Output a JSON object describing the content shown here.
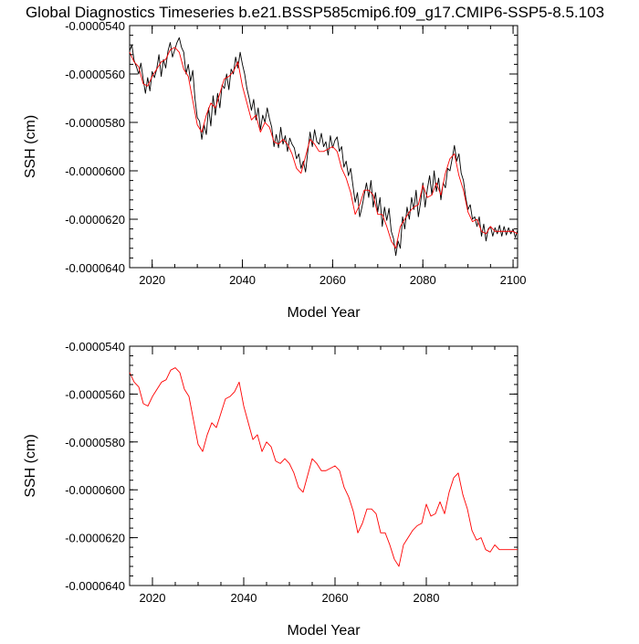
{
  "page_title": "Global Diagnostics Timeseries b.e21.BSSP585cmip6.f09_g17.CMIP6-SSP5-8.5.103",
  "colors": {
    "monthly_line": "#000000",
    "annual_line": "#ff0000",
    "axes": "#000000",
    "background": "#ffffff"
  },
  "chart_data": [
    {
      "type": "line",
      "title": "Global Diagnostics Timeseries b.e21.BSSP585cmip6.f09_g17.CMIP6-SSP5-8.5.103",
      "xlabel": "Model Year",
      "ylabel": "SSH (cm)",
      "xlim": [
        2015,
        2101
      ],
      "ylim": [
        -6.4e-05,
        -5.4e-05
      ],
      "x_ticks": [
        2020,
        2040,
        2060,
        2080,
        2100
      ],
      "x_tick_labels": [
        "2020",
        "2040",
        "2060",
        "2080",
        "2100"
      ],
      "y_ticks": [
        -6.4e-05,
        -6.2e-05,
        -6e-05,
        -5.8e-05,
        -5.6e-05,
        -5.4e-05
      ],
      "y_tick_labels": [
        "-0.0000640",
        "-0.0000620",
        "-0.0000600",
        "-0.0000580",
        "-0.0000560",
        "-0.0000540"
      ],
      "grid": false,
      "series": [
        {
          "color": "#000000",
          "x": [
            2015.0,
            2015.5,
            2016.0,
            2016.5,
            2017.0,
            2017.5,
            2018.0,
            2018.5,
            2019.0,
            2019.5,
            2020.0,
            2020.5,
            2021.0,
            2021.5,
            2022.0,
            2022.5,
            2023.0,
            2023.5,
            2024.0,
            2024.5,
            2025.0,
            2025.5,
            2026.0,
            2026.5,
            2027.0,
            2027.5,
            2028.0,
            2028.5,
            2029.0,
            2029.5,
            2030.0,
            2030.5,
            2031.0,
            2031.5,
            2032.0,
            2032.5,
            2033.0,
            2033.5,
            2034.0,
            2034.5,
            2035.0,
            2035.5,
            2036.0,
            2036.5,
            2037.0,
            2037.5,
            2038.0,
            2038.5,
            2039.0,
            2039.5,
            2040.0,
            2040.5,
            2041.0,
            2041.5,
            2042.0,
            2042.5,
            2043.0,
            2043.5,
            2044.0,
            2044.5,
            2045.0,
            2045.5,
            2046.0,
            2046.5,
            2047.0,
            2047.5,
            2048.0,
            2048.5,
            2049.0,
            2049.5,
            2050.0,
            2050.5,
            2051.0,
            2051.5,
            2052.0,
            2052.5,
            2053.0,
            2053.5,
            2054.0,
            2054.5,
            2055.0,
            2055.5,
            2056.0,
            2056.5,
            2057.0,
            2057.5,
            2058.0,
            2058.5,
            2059.0,
            2059.5,
            2060.0,
            2060.5,
            2061.0,
            2061.5,
            2062.0,
            2062.5,
            2063.0,
            2063.5,
            2064.0,
            2064.5,
            2065.0,
            2065.5,
            2066.0,
            2066.5,
            2067.0,
            2067.5,
            2068.0,
            2068.5,
            2069.0,
            2069.5,
            2070.0,
            2070.5,
            2071.0,
            2071.5,
            2072.0,
            2072.5,
            2073.0,
            2073.5,
            2074.0,
            2074.5,
            2075.0,
            2075.5,
            2076.0,
            2076.5,
            2077.0,
            2077.5,
            2078.0,
            2078.5,
            2079.0,
            2079.5,
            2080.0,
            2080.5,
            2081.0,
            2081.5,
            2082.0,
            2082.5,
            2083.0,
            2083.5,
            2084.0,
            2084.5,
            2085.0,
            2085.5,
            2086.0,
            2086.5,
            2087.0,
            2087.5,
            2088.0,
            2088.5,
            2089.0,
            2089.5,
            2090.0,
            2090.5,
            2091.0,
            2091.5,
            2092.0,
            2092.5,
            2093.0,
            2093.5,
            2094.0,
            2094.5,
            2095.0,
            2095.5,
            2096.0,
            2096.5,
            2097.0,
            2097.5,
            2098.0,
            2098.5,
            2099.0,
            2099.5,
            2100.0,
            2100.5,
            2101.0
          ],
          "values": [
            -5.505e-05,
            -5.48e-05,
            -5.545e-05,
            -5.57e-05,
            -5.6e-05,
            -5.555e-05,
            -5.62e-05,
            -5.68e-05,
            -5.615e-05,
            -5.67e-05,
            -5.59e-05,
            -5.615e-05,
            -5.58e-05,
            -5.52e-05,
            -5.61e-05,
            -5.54e-05,
            -5.575e-05,
            -5.505e-05,
            -5.47e-05,
            -5.53e-05,
            -5.5e-05,
            -5.47e-05,
            -5.45e-05,
            -5.49e-05,
            -5.51e-05,
            -5.6e-05,
            -5.56e-05,
            -5.63e-05,
            -5.585e-05,
            -5.705e-05,
            -5.78e-05,
            -5.795e-05,
            -5.87e-05,
            -5.81e-05,
            -5.85e-05,
            -5.74e-05,
            -5.815e-05,
            -5.69e-05,
            -5.77e-05,
            -5.68e-05,
            -5.74e-05,
            -5.645e-05,
            -5.66e-05,
            -5.6e-05,
            -5.665e-05,
            -5.58e-05,
            -5.6e-05,
            -5.53e-05,
            -5.575e-05,
            -5.51e-05,
            -5.56e-05,
            -5.6e-05,
            -5.66e-05,
            -5.7e-05,
            -5.75e-05,
            -5.705e-05,
            -5.79e-05,
            -5.74e-05,
            -5.83e-05,
            -5.77e-05,
            -5.8e-05,
            -5.74e-05,
            -5.785e-05,
            -5.82e-05,
            -5.9e-05,
            -5.85e-05,
            -5.905e-05,
            -5.82e-05,
            -5.89e-05,
            -5.855e-05,
            -5.92e-05,
            -5.865e-05,
            -5.89e-05,
            -5.905e-05,
            -5.95e-05,
            -5.93e-05,
            -5.99e-05,
            -5.96e-05,
            -6.005e-05,
            -5.92e-05,
            -5.84e-05,
            -5.9e-05,
            -5.83e-05,
            -5.88e-05,
            -5.89e-05,
            -5.845e-05,
            -5.9e-05,
            -5.88e-05,
            -5.935e-05,
            -5.855e-05,
            -5.905e-05,
            -5.875e-05,
            -5.86e-05,
            -5.92e-05,
            -5.9e-05,
            -5.985e-05,
            -5.96e-05,
            -6.02e-05,
            -5.99e-05,
            -6.06e-05,
            -6.13e-05,
            -6.09e-05,
            -6.19e-05,
            -6.15e-05,
            -6.1e-05,
            -6.05e-05,
            -6.11e-05,
            -6.04e-05,
            -6.15e-05,
            -6.09e-05,
            -6.17e-05,
            -6.11e-05,
            -6.23e-05,
            -6.15e-05,
            -6.205e-05,
            -6.155e-05,
            -6.25e-05,
            -6.28e-05,
            -6.35e-05,
            -6.29e-05,
            -6.32e-05,
            -6.19e-05,
            -6.24e-05,
            -6.15e-05,
            -6.2e-05,
            -6.11e-05,
            -6.16e-05,
            -6.08e-05,
            -6.19e-05,
            -6.13e-05,
            -6.05e-05,
            -6.15e-05,
            -6.075e-05,
            -6.02e-05,
            -6.1e-05,
            -6e-05,
            -6.085e-05,
            -6.03e-05,
            -6.12e-05,
            -6.05e-05,
            -6.07e-05,
            -5.99e-05,
            -6e-05,
            -5.95e-05,
            -5.895e-05,
            -5.96e-05,
            -5.93e-05,
            -6.01e-05,
            -6.04e-05,
            -6.11e-05,
            -6.16e-05,
            -6.14e-05,
            -6.2e-05,
            -6.19e-05,
            -6.23e-05,
            -6.19e-05,
            -6.27e-05,
            -6.22e-05,
            -6.29e-05,
            -6.24e-05,
            -6.23e-05,
            -6.27e-05,
            -6.235e-05,
            -6.26e-05,
            -6.225e-05,
            -6.27e-05,
            -6.23e-05,
            -6.265e-05,
            -6.235e-05,
            -6.26e-05,
            -6.24e-05,
            -6.275e-05,
            -6.245e-05
          ]
        },
        {
          "color": "#ff0000",
          "x": [
            2015,
            2016,
            2017,
            2018,
            2019,
            2020,
            2021,
            2022,
            2023,
            2024,
            2025,
            2026,
            2027,
            2028,
            2029,
            2030,
            2031,
            2032,
            2033,
            2034,
            2035,
            2036,
            2037,
            2038,
            2039,
            2040,
            2041,
            2042,
            2043,
            2044,
            2045,
            2046,
            2047,
            2048,
            2049,
            2050,
            2051,
            2052,
            2053,
            2054,
            2055,
            2056,
            2057,
            2058,
            2059,
            2060,
            2061,
            2062,
            2063,
            2064,
            2065,
            2066,
            2067,
            2068,
            2069,
            2070,
            2071,
            2072,
            2073,
            2074,
            2075,
            2076,
            2077,
            2078,
            2079,
            2080,
            2081,
            2082,
            2083,
            2084,
            2085,
            2086,
            2087,
            2088,
            2089,
            2090,
            2091,
            2092,
            2093,
            2094,
            2095,
            2096,
            2097,
            2098,
            2099,
            2100,
            2101
          ],
          "values": [
            -5.51e-05,
            -5.55e-05,
            -5.57e-05,
            -5.64e-05,
            -5.65e-05,
            -5.61e-05,
            -5.58e-05,
            -5.55e-05,
            -5.54e-05,
            -5.5e-05,
            -5.49e-05,
            -5.51e-05,
            -5.58e-05,
            -5.61e-05,
            -5.71e-05,
            -5.81e-05,
            -5.84e-05,
            -5.77e-05,
            -5.72e-05,
            -5.74e-05,
            -5.68e-05,
            -5.62e-05,
            -5.61e-05,
            -5.59e-05,
            -5.55e-05,
            -5.65e-05,
            -5.72e-05,
            -5.79e-05,
            -5.77e-05,
            -5.84e-05,
            -5.8e-05,
            -5.82e-05,
            -5.88e-05,
            -5.89e-05,
            -5.87e-05,
            -5.89e-05,
            -5.93e-05,
            -5.99e-05,
            -6.01e-05,
            -5.94e-05,
            -5.87e-05,
            -5.89e-05,
            -5.92e-05,
            -5.92e-05,
            -5.91e-05,
            -5.9e-05,
            -5.92e-05,
            -5.99e-05,
            -6.03e-05,
            -6.09e-05,
            -6.18e-05,
            -6.14e-05,
            -6.08e-05,
            -6.08e-05,
            -6.1e-05,
            -6.18e-05,
            -6.18e-05,
            -6.23e-05,
            -6.29e-05,
            -6.32e-05,
            -6.23e-05,
            -6.2e-05,
            -6.17e-05,
            -6.15e-05,
            -6.14e-05,
            -6.06e-05,
            -6.11e-05,
            -6.1e-05,
            -6.05e-05,
            -6.1e-05,
            -6.01e-05,
            -5.95e-05,
            -5.93e-05,
            -6.02e-05,
            -6.08e-05,
            -6.17e-05,
            -6.21e-05,
            -6.2e-05,
            -6.25e-05,
            -6.26e-05,
            -6.23e-05,
            -6.25e-05,
            -6.25e-05,
            -6.25e-05,
            -6.25e-05,
            -6.25e-05,
            -6.26e-05
          ]
        }
      ]
    },
    {
      "type": "line",
      "title": "",
      "xlabel": "Model Year",
      "ylabel": "SSH (cm)",
      "xlim": [
        2015,
        2100
      ],
      "ylim": [
        -6.4e-05,
        -5.4e-05
      ],
      "x_ticks": [
        2020,
        2040,
        2060,
        2080
      ],
      "x_tick_labels": [
        "2020",
        "2040",
        "2060",
        "2080"
      ],
      "y_ticks": [
        -6.4e-05,
        -6.2e-05,
        -6e-05,
        -5.8e-05,
        -5.6e-05,
        -5.4e-05
      ],
      "y_tick_labels": [
        "-0.0000640",
        "-0.0000620",
        "-0.0000600",
        "-0.0000580",
        "-0.0000560",
        "-0.0000540"
      ],
      "grid": false,
      "series": [
        {
          "color": "#ff0000",
          "x": [
            2015,
            2016,
            2017,
            2018,
            2019,
            2020,
            2021,
            2022,
            2023,
            2024,
            2025,
            2026,
            2027,
            2028,
            2029,
            2030,
            2031,
            2032,
            2033,
            2034,
            2035,
            2036,
            2037,
            2038,
            2039,
            2040,
            2041,
            2042,
            2043,
            2044,
            2045,
            2046,
            2047,
            2048,
            2049,
            2050,
            2051,
            2052,
            2053,
            2054,
            2055,
            2056,
            2057,
            2058,
            2059,
            2060,
            2061,
            2062,
            2063,
            2064,
            2065,
            2066,
            2067,
            2068,
            2069,
            2070,
            2071,
            2072,
            2073,
            2074,
            2075,
            2076,
            2077,
            2078,
            2079,
            2080,
            2081,
            2082,
            2083,
            2084,
            2085,
            2086,
            2087,
            2088,
            2089,
            2090,
            2091,
            2092,
            2093,
            2094,
            2095,
            2096,
            2097,
            2098,
            2099,
            2100
          ],
          "values": [
            -5.51e-05,
            -5.55e-05,
            -5.57e-05,
            -5.64e-05,
            -5.65e-05,
            -5.61e-05,
            -5.58e-05,
            -5.55e-05,
            -5.54e-05,
            -5.5e-05,
            -5.49e-05,
            -5.51e-05,
            -5.58e-05,
            -5.61e-05,
            -5.71e-05,
            -5.81e-05,
            -5.84e-05,
            -5.77e-05,
            -5.72e-05,
            -5.74e-05,
            -5.68e-05,
            -5.62e-05,
            -5.61e-05,
            -5.59e-05,
            -5.55e-05,
            -5.65e-05,
            -5.72e-05,
            -5.79e-05,
            -5.77e-05,
            -5.84e-05,
            -5.8e-05,
            -5.82e-05,
            -5.88e-05,
            -5.89e-05,
            -5.87e-05,
            -5.89e-05,
            -5.93e-05,
            -5.99e-05,
            -6.01e-05,
            -5.94e-05,
            -5.87e-05,
            -5.89e-05,
            -5.92e-05,
            -5.92e-05,
            -5.91e-05,
            -5.9e-05,
            -5.92e-05,
            -5.99e-05,
            -6.03e-05,
            -6.09e-05,
            -6.18e-05,
            -6.14e-05,
            -6.08e-05,
            -6.08e-05,
            -6.1e-05,
            -6.18e-05,
            -6.18e-05,
            -6.23e-05,
            -6.29e-05,
            -6.32e-05,
            -6.23e-05,
            -6.2e-05,
            -6.17e-05,
            -6.15e-05,
            -6.14e-05,
            -6.06e-05,
            -6.11e-05,
            -6.1e-05,
            -6.05e-05,
            -6.1e-05,
            -6.01e-05,
            -5.95e-05,
            -5.93e-05,
            -6.02e-05,
            -6.08e-05,
            -6.17e-05,
            -6.21e-05,
            -6.2e-05,
            -6.25e-05,
            -6.26e-05,
            -6.23e-05,
            -6.25e-05,
            -6.25e-05,
            -6.25e-05,
            -6.25e-05,
            -6.25e-05
          ]
        }
      ]
    }
  ]
}
